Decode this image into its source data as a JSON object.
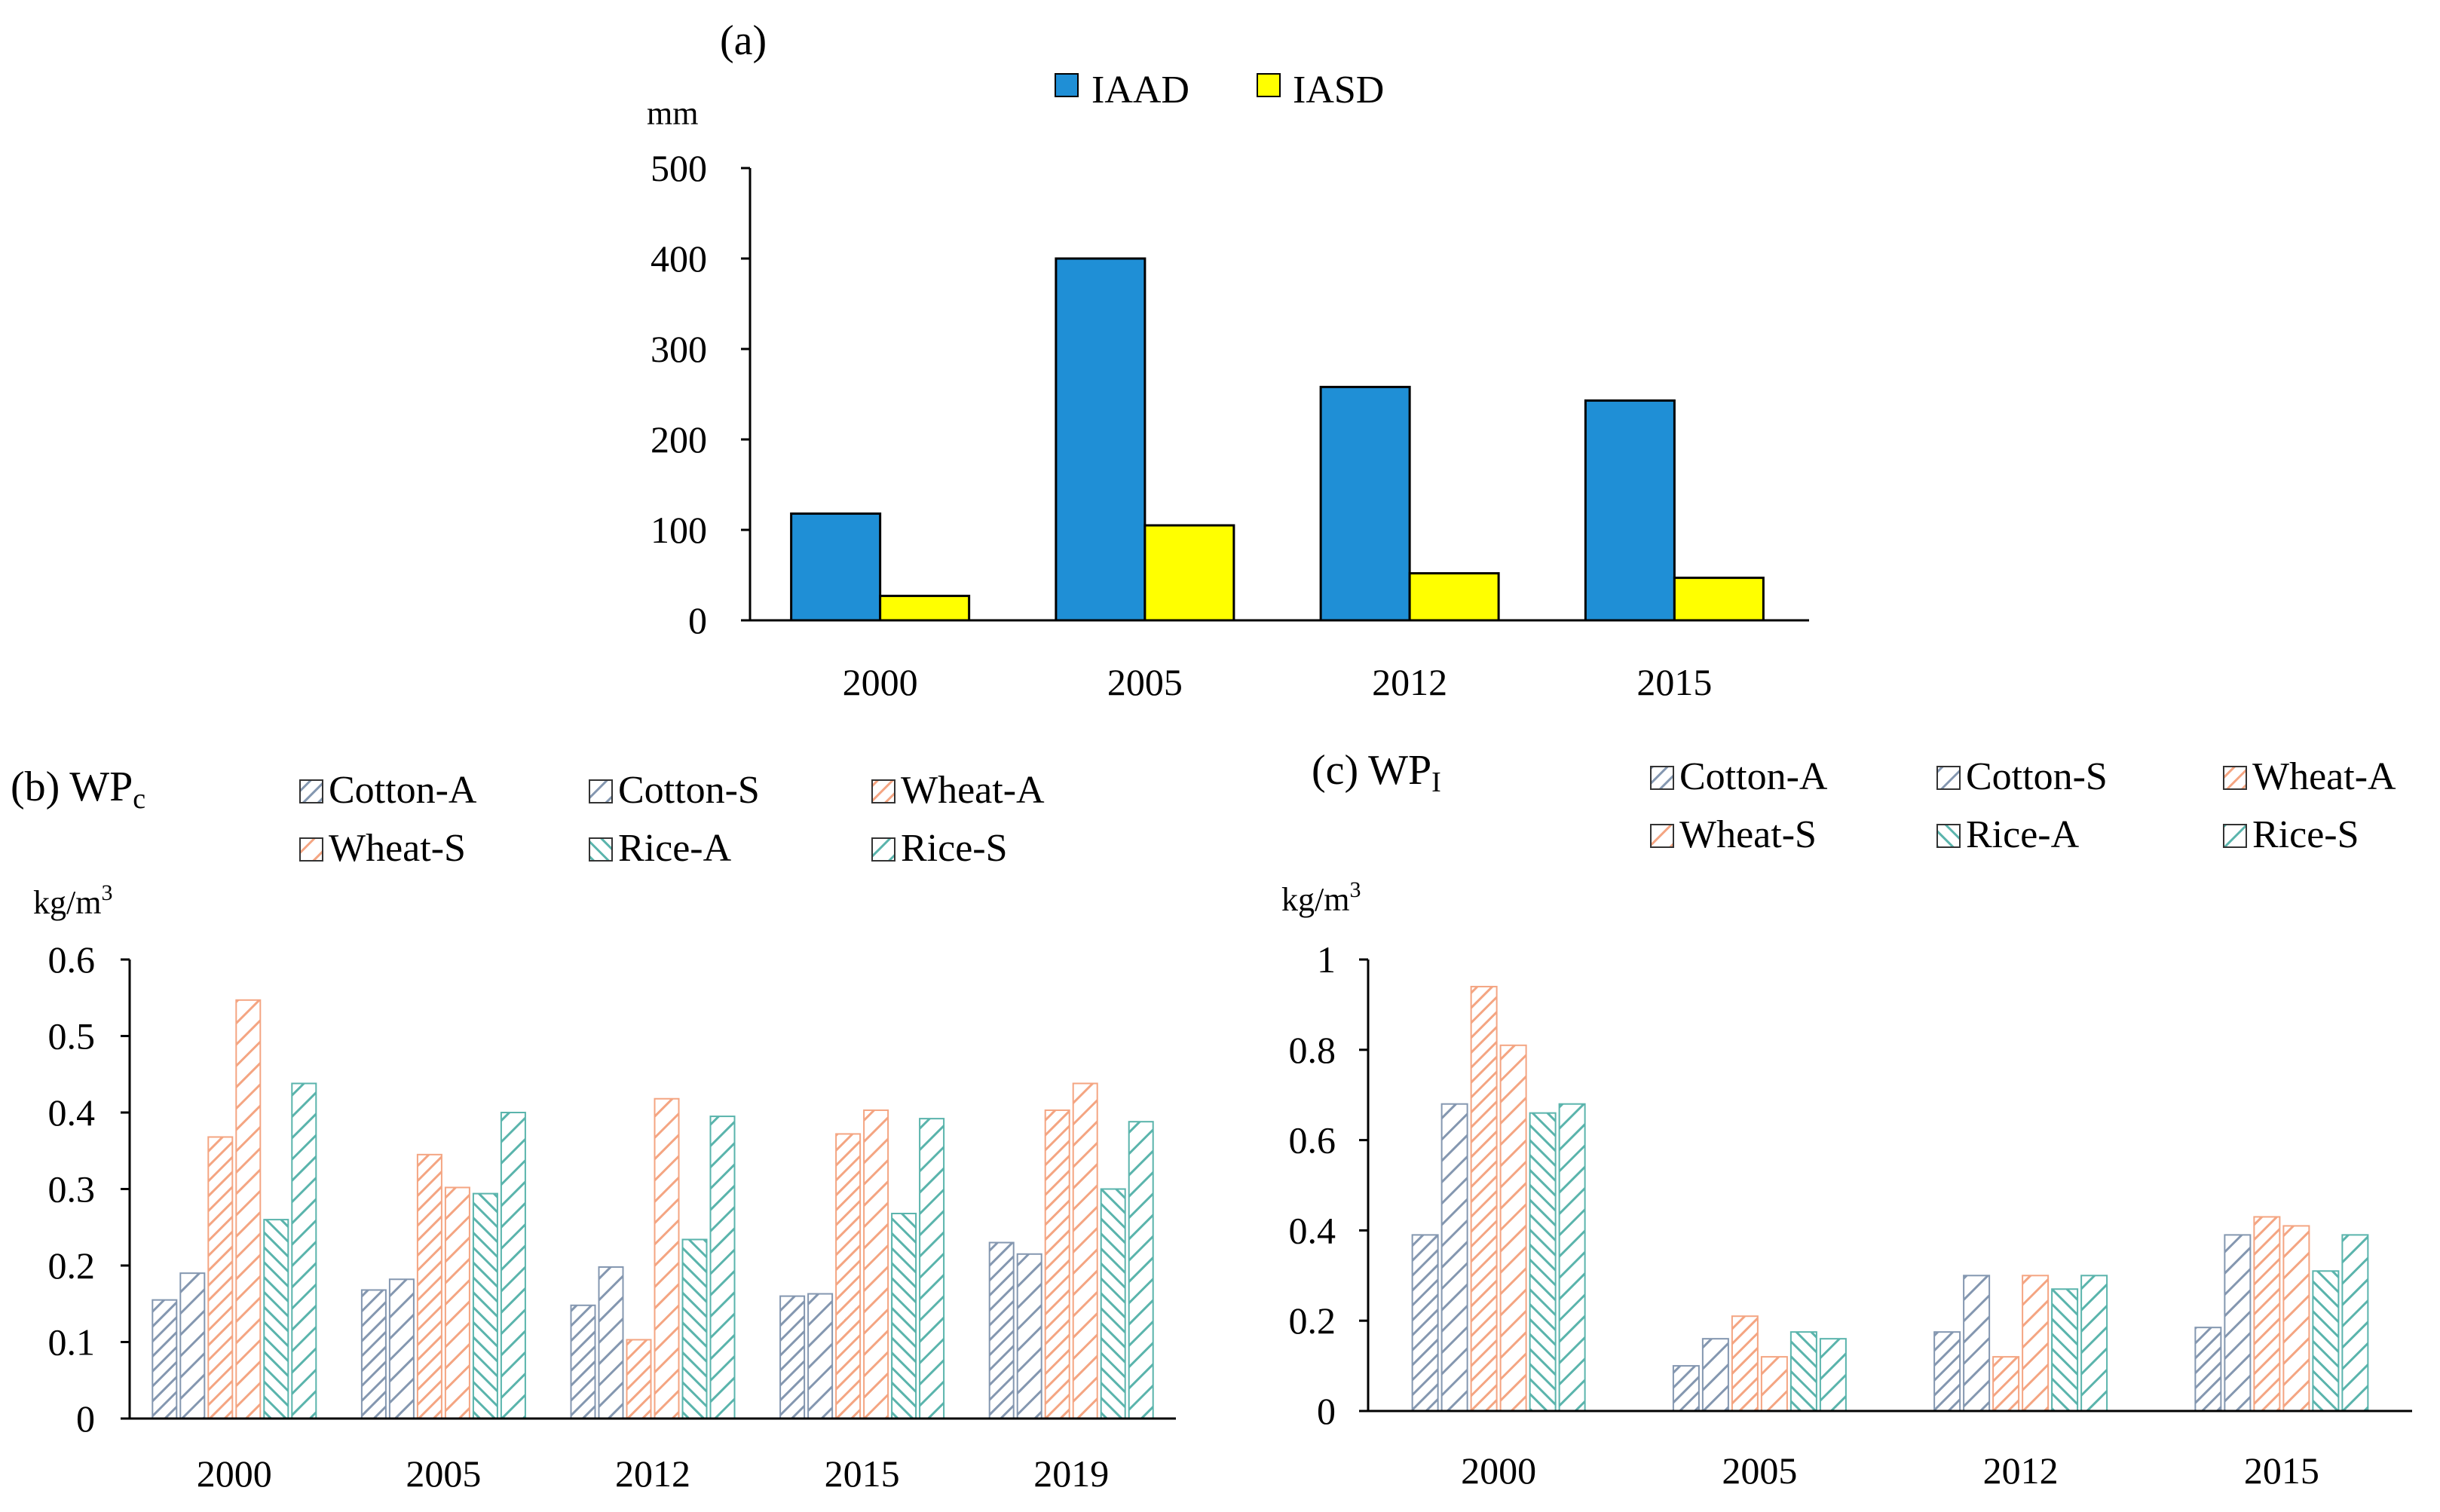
{
  "chart_data": [
    {
      "panel": "a",
      "type": "bar",
      "title": "(a)",
      "ylabel": "mm",
      "categories": [
        "2000",
        "2005",
        "2012",
        "2015"
      ],
      "series": [
        {
          "name": "IAAD",
          "values": [
            118,
            400,
            258,
            243
          ]
        },
        {
          "name": "IASD",
          "values": [
            27,
            105,
            52,
            47
          ]
        }
      ],
      "ylim": [
        0,
        500
      ],
      "yticks": [
        "0",
        "100",
        "200",
        "300",
        "400",
        "500"
      ],
      "colors": {
        "IAAD": "#1f8fd6",
        "IASD": "#ffff00"
      }
    },
    {
      "panel": "b",
      "type": "bar",
      "title": "(b) WP",
      "title_sub": "c",
      "ylabel": "kg/m",
      "ylabel_sup": "3",
      "categories": [
        "2000",
        "2005",
        "2012",
        "2015",
        "2019"
      ],
      "series": [
        {
          "name": "Cotton-A",
          "values": [
            0.155,
            0.168,
            0.148,
            0.16,
            0.23
          ]
        },
        {
          "name": "Cotton-S",
          "values": [
            0.19,
            0.182,
            0.198,
            0.163,
            0.215
          ]
        },
        {
          "name": "Wheat-A",
          "values": [
            0.368,
            0.345,
            0.103,
            0.372,
            0.403
          ]
        },
        {
          "name": "Wheat-S",
          "values": [
            0.547,
            0.302,
            0.418,
            0.403,
            0.438
          ]
        },
        {
          "name": "Rice-A",
          "values": [
            0.26,
            0.294,
            0.234,
            0.268,
            0.3
          ]
        },
        {
          "name": "Rice-S",
          "values": [
            0.438,
            0.4,
            0.395,
            0.392,
            0.388
          ]
        }
      ],
      "ylim": [
        0,
        0.6
      ],
      "yticks": [
        "0",
        "0.1",
        "0.2",
        "0.3",
        "0.4",
        "0.5",
        "0.6"
      ]
    },
    {
      "panel": "c",
      "type": "bar",
      "title": "(c) WP",
      "title_sub": "I",
      "ylabel": "kg/m",
      "ylabel_sup": "3",
      "categories": [
        "2000",
        "2005",
        "2012",
        "2015"
      ],
      "series": [
        {
          "name": "Cotton-A",
          "values": [
            0.39,
            0.1,
            0.175,
            0.185
          ]
        },
        {
          "name": "Cotton-S",
          "values": [
            0.68,
            0.16,
            0.3,
            0.39
          ]
        },
        {
          "name": "Wheat-A",
          "values": [
            0.94,
            0.21,
            0.12,
            0.43
          ]
        },
        {
          "name": "Wheat-S",
          "values": [
            0.81,
            0.12,
            0.3,
            0.41
          ]
        },
        {
          "name": "Rice-A",
          "values": [
            0.66,
            0.175,
            0.27,
            0.31
          ]
        },
        {
          "name": "Rice-S",
          "values": [
            0.68,
            0.16,
            0.3,
            0.39
          ]
        }
      ],
      "ylim": [
        0,
        1
      ],
      "yticks": [
        "0",
        "0.2",
        "0.4",
        "0.6",
        "0.8",
        "1"
      ]
    }
  ],
  "hatch_colors": {
    "Cotton-A": "#8497b0",
    "Cotton-S": "#8497b0",
    "Wheat-A": "#f4a582",
    "Wheat-S": "#f4a582",
    "Rice-A": "#5ab4ac",
    "Rice-S": "#5ab4ac"
  }
}
